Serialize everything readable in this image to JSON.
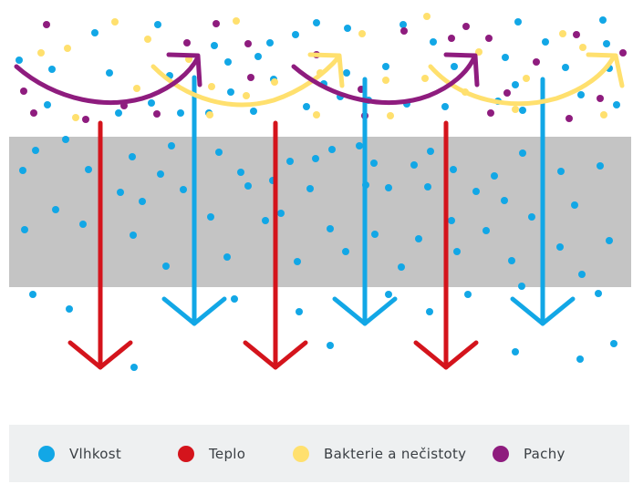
{
  "colors": {
    "moisture": "#12a7e6",
    "heat": "#d4141c",
    "bacteria": "#ffe06e",
    "odors": "#8e1c7e",
    "membrane": "#c4c4c4",
    "legend_bg": "#eef0f1"
  },
  "legend": {
    "items": [
      {
        "label": "Vlhkost",
        "color": "#12a7e6"
      },
      {
        "label": "Teplo",
        "color": "#d4141c"
      },
      {
        "label": "Bakterie a nečistoty",
        "color": "#ffe06e"
      },
      {
        "label": "Pachy",
        "color": "#8e1c7e"
      }
    ]
  }
}
